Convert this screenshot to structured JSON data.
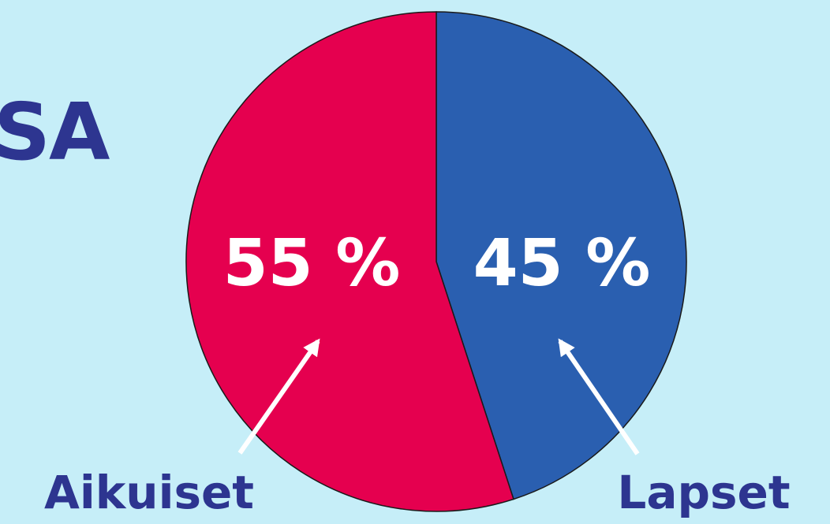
{
  "heading_fragment": "SA",
  "colors": {
    "background": "#c6eef8",
    "title": "#2d3590",
    "adults": "#e5004f",
    "children": "#2a5fb0",
    "slice_text": "#ffffff",
    "outline": "#1a1a1a"
  },
  "chart_data": {
    "type": "pie",
    "labels": [
      "Aikuiset",
      "Lapset"
    ],
    "values": [
      55,
      45
    ],
    "value_labels": [
      "55 %",
      "45 %"
    ],
    "colors": [
      "#e5004f",
      "#2a5fb0"
    ],
    "start": "12 o'clock",
    "direction": "counter-clockwise from Lapset",
    "annotations": "arrows from category labels to slices"
  }
}
